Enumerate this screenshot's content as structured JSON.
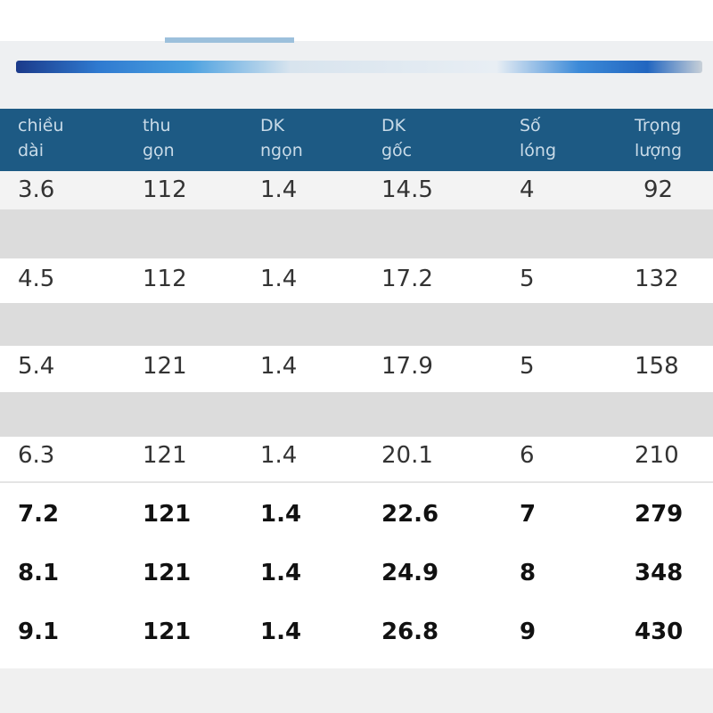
{
  "table": {
    "headers": [
      [
        "chiều",
        "dài"
      ],
      [
        "thu",
        "gọn"
      ],
      [
        "DK",
        "ngọn"
      ],
      [
        "DK",
        "gốc"
      ],
      [
        "Số",
        "lóng"
      ],
      [
        "Trọng",
        "lượng"
      ]
    ],
    "rows": [
      [
        3.6,
        112,
        1.4,
        14.5,
        4,
        92
      ],
      [
        4.5,
        112,
        1.4,
        17.2,
        5,
        132
      ],
      [
        5.4,
        121,
        1.4,
        17.9,
        5,
        158
      ],
      [
        6.3,
        121,
        1.4,
        20.1,
        6,
        210
      ],
      [
        7.2,
        121,
        1.4,
        22.6,
        7,
        279
      ],
      [
        8.1,
        121,
        1.4,
        24.9,
        8,
        348
      ],
      [
        9.1,
        121,
        1.4,
        26.8,
        9,
        430
      ]
    ]
  }
}
